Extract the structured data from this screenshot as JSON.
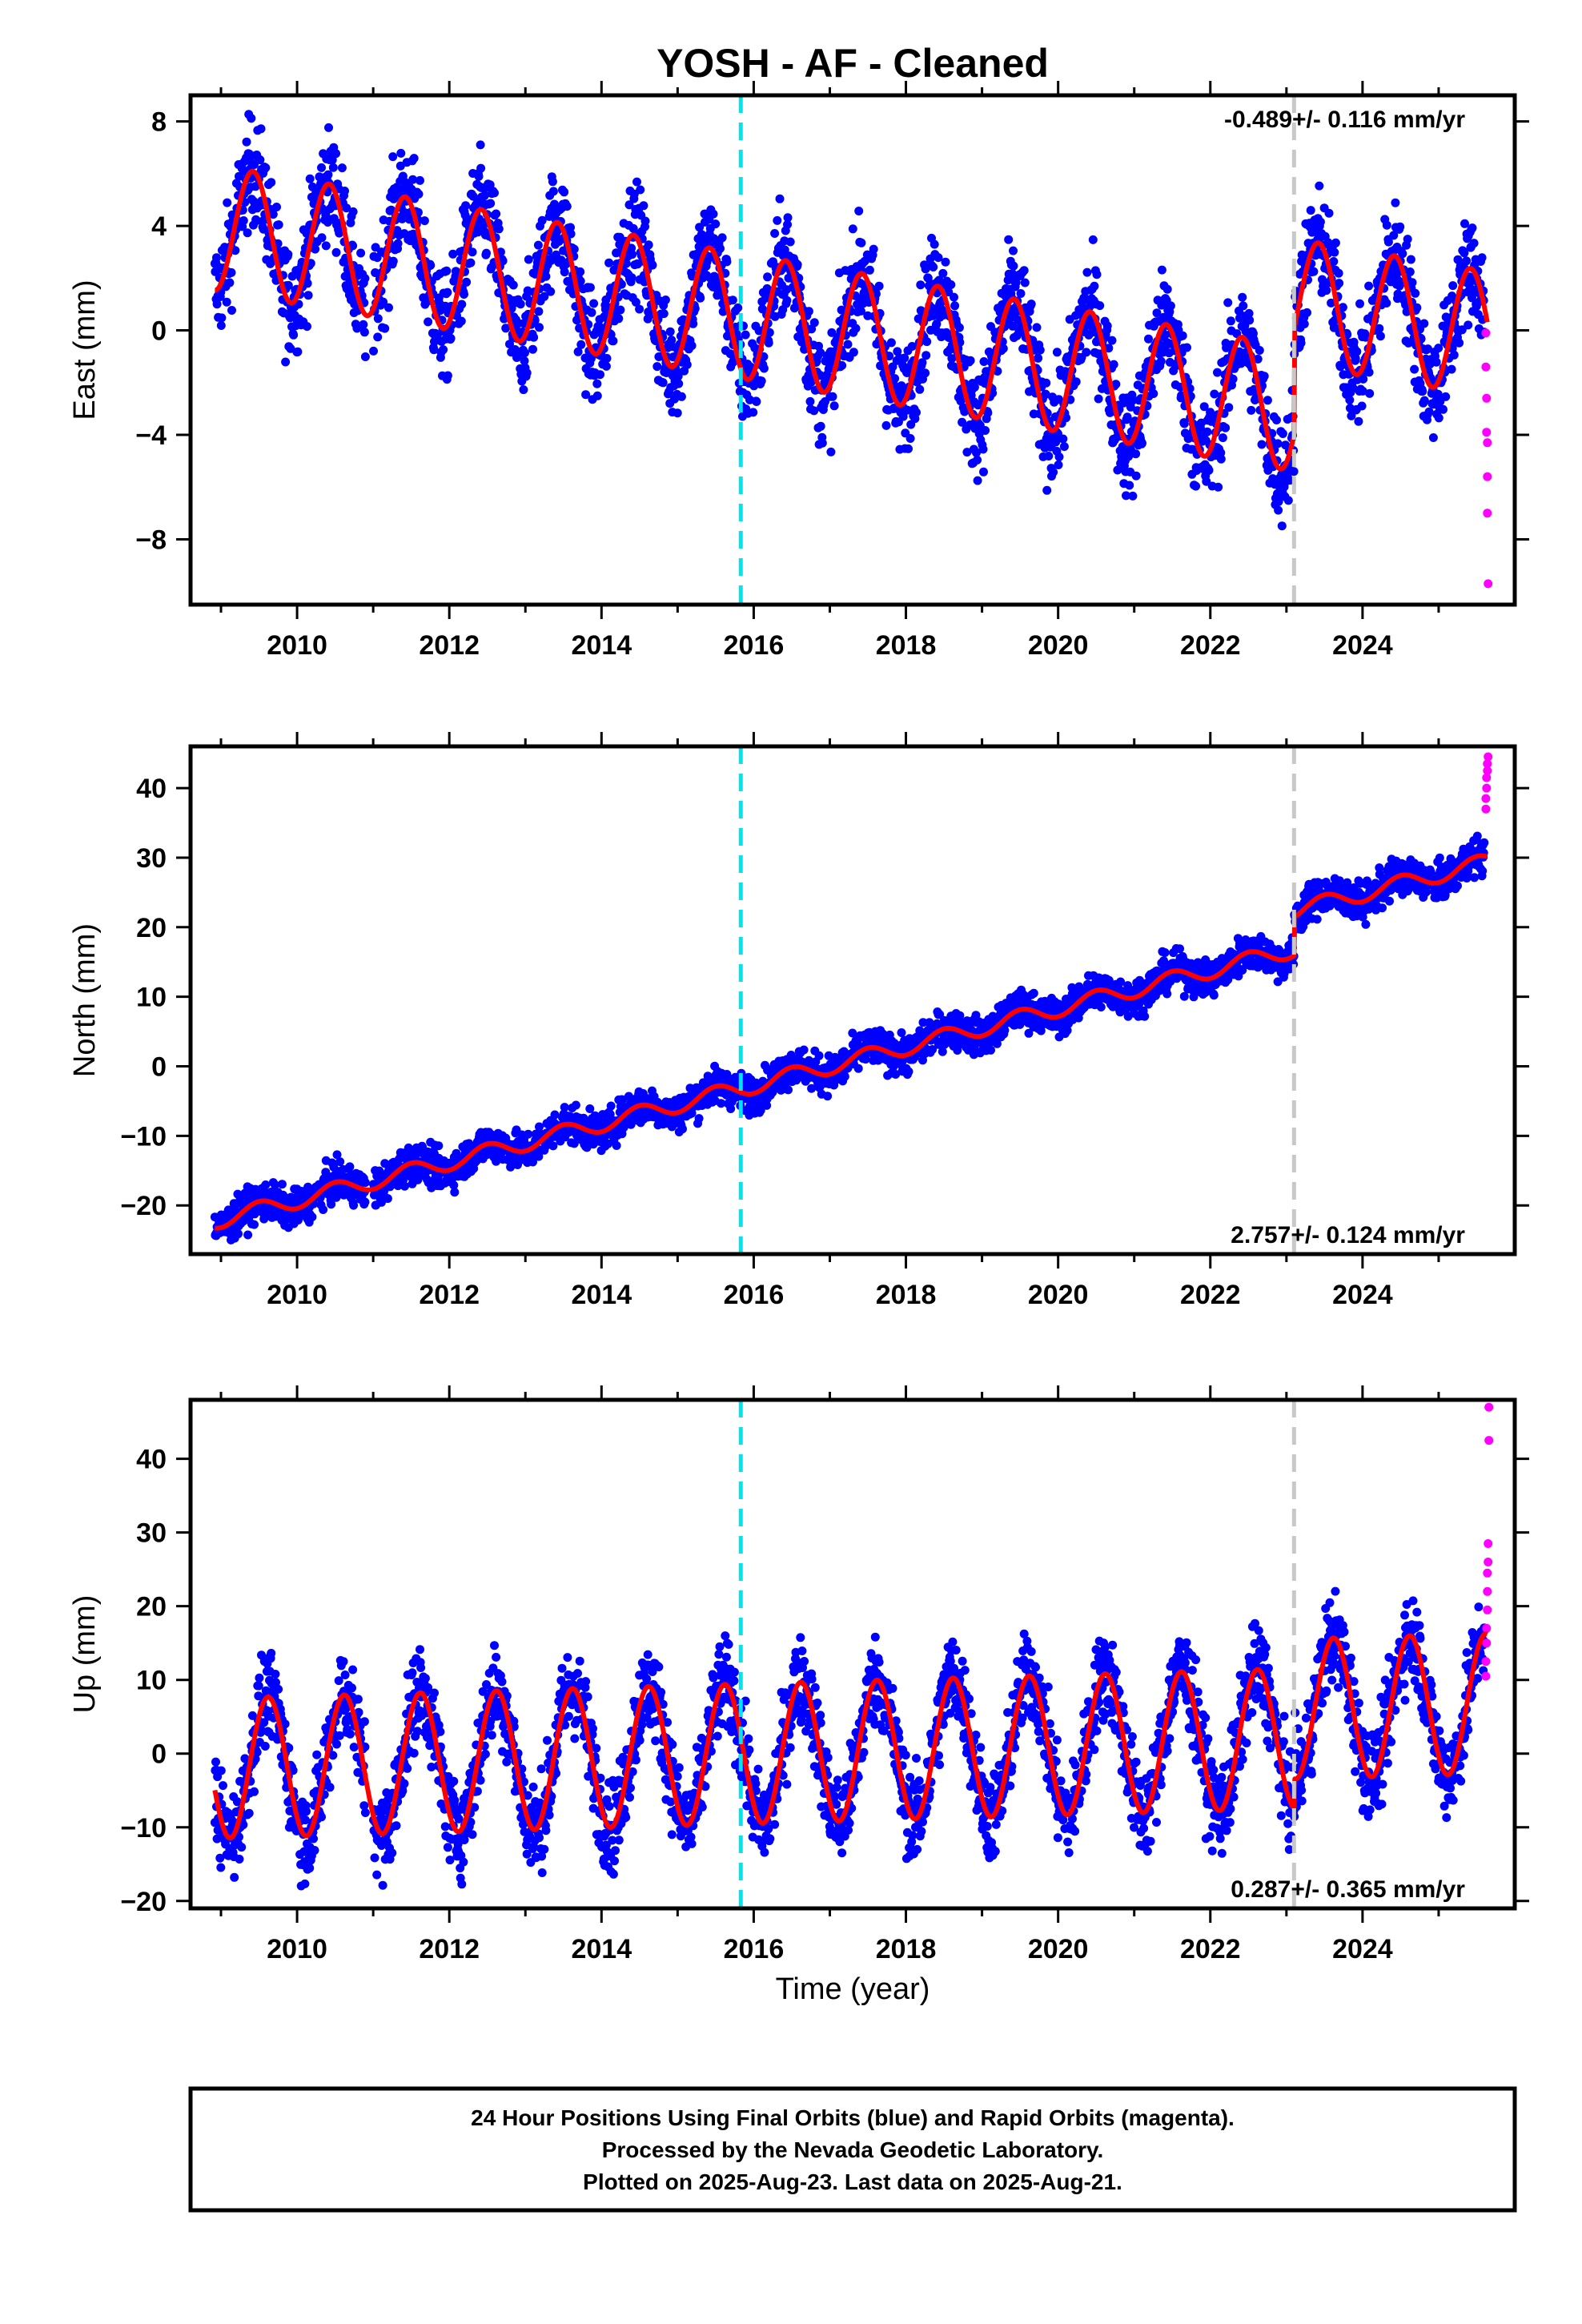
{
  "title": "YOSH  - AF - Cleaned",
  "colors": {
    "final_orbits": "#0000ff",
    "rapid_orbits": "#ff00ff",
    "model": "#ff0000",
    "offset_equipment": "#00e5ee",
    "offset_event": "#c8c8c8"
  },
  "x_axis": {
    "label": "Time (year)",
    "ticks": [
      "2010",
      "2012",
      "2014",
      "2016",
      "2018",
      "2020",
      "2022",
      "2024"
    ]
  },
  "footer": {
    "line1": "24 Hour Positions Using Final Orbits (blue) and Rapid Orbits (magenta).",
    "line2": "Processed by the Nevada Geodetic Laboratory.",
    "line3": "Plotted on 2025-Aug-23. Last data on 2025-Aug-21."
  },
  "chart_data": [
    {
      "type": "scatter",
      "component": "east",
      "ylabel": "East (mm)",
      "rate_label": "-0.489+/- 0.116 mm/yr",
      "xlim": [
        2008.6,
        2026.0
      ],
      "ylim": [
        -10.5,
        9.0
      ],
      "yticks": [
        8,
        4,
        0,
        -4,
        -8
      ],
      "offset_lines": [
        2015.83,
        2023.1
      ],
      "rate": -0.489,
      "rate_uncertainty": 0.116,
      "data_start": 2008.92,
      "data_end": 2025.64,
      "model": {
        "intercept_at_2009": 3.9,
        "annual_amplitude": 2.4,
        "annual_peak_phase": 0.42,
        "offset_at_2023.1": 4.1,
        "scatter": 1.0
      },
      "rapid_points": [
        [
          2025.62,
          -0.1
        ],
        [
          2025.62,
          -1.4
        ],
        [
          2025.63,
          -2.6
        ],
        [
          2025.63,
          -3.9
        ],
        [
          2025.64,
          -4.3
        ],
        [
          2025.64,
          -5.6
        ],
        [
          2025.64,
          -7.0
        ],
        [
          2025.65,
          -9.7
        ]
      ]
    },
    {
      "type": "scatter",
      "component": "north",
      "ylabel": "North (mm)",
      "rate_label": "2.757+/- 0.124 mm/yr",
      "xlim": [
        2008.6,
        2026.0
      ],
      "ylim": [
        -27.0,
        46.0
      ],
      "yticks": [
        40,
        30,
        20,
        10,
        0,
        -10,
        -20
      ],
      "offset_lines": [
        2015.83,
        2023.1
      ],
      "rate": 2.757,
      "rate_uncertainty": 0.124,
      "data_start": 2008.92,
      "data_end": 2025.64,
      "model": {
        "intercept_at_2009": -22.0,
        "annual_amplitude": 1.2,
        "annual_peak_phase": 0.5,
        "offset_at_2023.1": 5.5,
        "scatter": 1.3
      },
      "rapid_points": [
        [
          2025.62,
          37.0
        ],
        [
          2025.62,
          38.5
        ],
        [
          2025.63,
          40.0
        ],
        [
          2025.63,
          41.5
        ],
        [
          2025.64,
          42.5
        ],
        [
          2025.64,
          43.5
        ],
        [
          2025.65,
          44.5
        ]
      ]
    },
    {
      "type": "scatter",
      "component": "up",
      "ylabel": "Up (mm)",
      "rate_label": "0.287+/- 0.365 mm/yr",
      "xlim": [
        2008.6,
        2026.0
      ],
      "ylim": [
        -21.0,
        48.0
      ],
      "yticks": [
        40,
        30,
        20,
        10,
        0,
        -10,
        -20
      ],
      "offset_lines": [
        2015.83,
        2023.1
      ],
      "rate": 0.287,
      "rate_uncertainty": 0.365,
      "data_start": 2008.92,
      "data_end": 2025.64,
      "model": {
        "intercept_at_2009": -2.0,
        "annual_amplitude": 9.5,
        "annual_peak_phase": 0.62,
        "offset_at_2023.1": 4.0,
        "scatter": 3.0
      },
      "rapid_points": [
        [
          2025.62,
          10.5
        ],
        [
          2025.62,
          12.5
        ],
        [
          2025.63,
          15.0
        ],
        [
          2025.63,
          17.0
        ],
        [
          2025.64,
          19.5
        ],
        [
          2025.64,
          22.0
        ],
        [
          2025.64,
          24.5
        ],
        [
          2025.65,
          26.0
        ],
        [
          2025.65,
          28.5
        ],
        [
          2025.66,
          42.5
        ],
        [
          2025.66,
          47.0
        ]
      ]
    }
  ]
}
